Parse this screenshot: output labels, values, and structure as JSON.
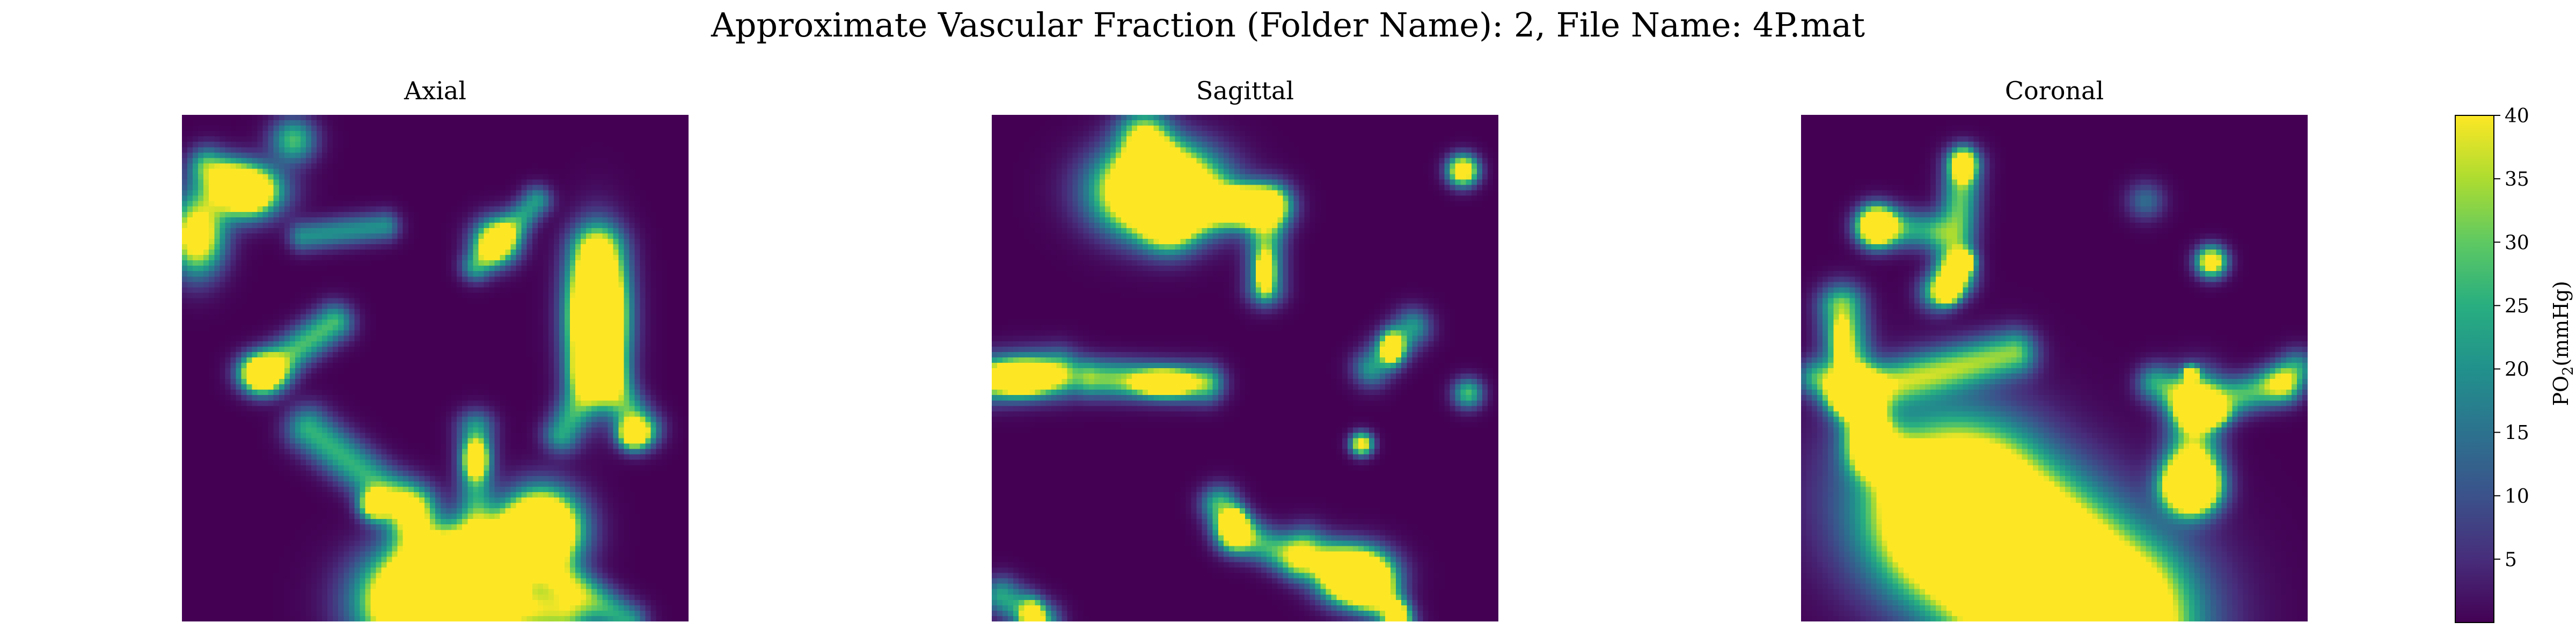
{
  "figure": {
    "title": "Approximate Vascular Fraction (Folder Name): 2, File Name: 4P.mat"
  },
  "chart_data": [
    {
      "type": "heatmap",
      "title": "Axial",
      "value_unit": "mmHg",
      "vmin": 0,
      "vmax": 40,
      "features": [
        {
          "kind": "blob",
          "x": 0.12,
          "y": 0.15,
          "w": 0.1,
          "h": 0.07,
          "v": 1.5
        },
        {
          "kind": "blob",
          "x": 0.03,
          "y": 0.24,
          "w": 0.07,
          "h": 0.1,
          "v": 1.3
        },
        {
          "kind": "blob",
          "x": 0.22,
          "y": 0.05,
          "w": 0.06,
          "h": 0.06,
          "v": 0.7
        },
        {
          "kind": "seg",
          "x1": 0.05,
          "y1": 0.1,
          "x2": 0.14,
          "y2": 0.15,
          "w": 0.05,
          "v": 0.65
        },
        {
          "kind": "blob",
          "x": 0.62,
          "y": 0.25,
          "w": 0.06,
          "h": 0.06,
          "v": 1.2
        },
        {
          "kind": "seg",
          "x1": 0.58,
          "y1": 0.3,
          "x2": 0.7,
          "y2": 0.17,
          "w": 0.04,
          "v": 0.55
        },
        {
          "kind": "seg",
          "x1": 0.24,
          "y1": 0.24,
          "x2": 0.4,
          "y2": 0.22,
          "w": 0.04,
          "v": 0.5
        },
        {
          "kind": "blob",
          "x": 0.82,
          "y": 0.4,
          "w": 0.07,
          "h": 0.18,
          "v": 2.0
        },
        {
          "kind": "seg",
          "x1": 0.82,
          "y1": 0.27,
          "x2": 0.82,
          "y2": 0.5,
          "w": 0.07,
          "v": 0.8
        },
        {
          "kind": "seg",
          "x1": 0.82,
          "y1": 0.5,
          "x2": 0.91,
          "y2": 0.62,
          "w": 0.05,
          "v": 0.65
        },
        {
          "kind": "seg",
          "x1": 0.82,
          "y1": 0.5,
          "x2": 0.75,
          "y2": 0.63,
          "w": 0.05,
          "v": 0.6
        },
        {
          "kind": "blob",
          "x": 0.89,
          "y": 0.63,
          "w": 0.04,
          "h": 0.04,
          "v": 1.3
        },
        {
          "kind": "blob",
          "x": 0.16,
          "y": 0.51,
          "w": 0.06,
          "h": 0.05,
          "v": 1.4
        },
        {
          "kind": "seg",
          "x1": 0.16,
          "y1": 0.51,
          "x2": 0.3,
          "y2": 0.41,
          "w": 0.05,
          "v": 0.7
        },
        {
          "kind": "seg",
          "x1": 0.25,
          "y1": 0.62,
          "x2": 0.45,
          "y2": 0.78,
          "w": 0.06,
          "v": 0.65
        },
        {
          "kind": "seg",
          "x1": 0.45,
          "y1": 0.78,
          "x2": 0.5,
          "y2": 0.93,
          "w": 0.07,
          "v": 0.7
        },
        {
          "kind": "blob",
          "x": 0.38,
          "y": 0.77,
          "w": 0.04,
          "h": 0.04,
          "v": 1.2
        },
        {
          "kind": "blob",
          "x": 0.58,
          "y": 0.68,
          "w": 0.03,
          "h": 0.05,
          "v": 1.2
        },
        {
          "kind": "seg",
          "x1": 0.58,
          "y1": 0.62,
          "x2": 0.58,
          "y2": 0.85,
          "w": 0.05,
          "v": 0.55
        },
        {
          "kind": "blob",
          "x": 0.71,
          "y": 0.82,
          "w": 0.1,
          "h": 0.1,
          "v": 2.1
        },
        {
          "kind": "seg",
          "x1": 0.55,
          "y1": 0.85,
          "x2": 0.7,
          "y2": 0.82,
          "w": 0.07,
          "v": 0.75
        },
        {
          "kind": "blob",
          "x": 0.49,
          "y": 0.96,
          "w": 0.16,
          "h": 0.13,
          "v": 2.8
        },
        {
          "kind": "seg",
          "x1": 0.49,
          "y1": 0.96,
          "x2": 0.75,
          "y2": 0.98,
          "w": 0.08,
          "v": 0.9
        },
        {
          "kind": "seg",
          "x1": 0.58,
          "y1": 0.93,
          "x2": 0.7,
          "y2": 0.86,
          "w": 0.05,
          "v": 0.7
        },
        {
          "kind": "seg",
          "x1": 0.73,
          "y1": 0.9,
          "x2": 0.88,
          "y2": 1.0,
          "w": 0.05,
          "v": 0.6
        },
        {
          "kind": "blob",
          "x": 0.66,
          "y": 0.92,
          "w": 0.03,
          "h": 0.03,
          "v": 1.2
        }
      ]
    },
    {
      "type": "heatmap",
      "title": "Sagittal",
      "value_unit": "mmHg",
      "vmin": 0,
      "vmax": 40,
      "features": [
        {
          "kind": "blob",
          "x": 0.33,
          "y": 0.15,
          "w": 0.15,
          "h": 0.11,
          "v": 2.6
        },
        {
          "kind": "blob",
          "x": 0.31,
          "y": 0.08,
          "w": 0.04,
          "h": 0.05,
          "v": 1.2
        },
        {
          "kind": "seg",
          "x1": 0.3,
          "y1": 0.04,
          "x2": 0.35,
          "y2": 0.22,
          "w": 0.07,
          "v": 0.8
        },
        {
          "kind": "seg",
          "x1": 0.35,
          "y1": 0.18,
          "x2": 0.55,
          "y2": 0.18,
          "w": 0.06,
          "v": 0.85
        },
        {
          "kind": "blob",
          "x": 0.5,
          "y": 0.18,
          "w": 0.07,
          "h": 0.04,
          "v": 1.5
        },
        {
          "kind": "seg",
          "x1": 0.54,
          "y1": 0.18,
          "x2": 0.54,
          "y2": 0.34,
          "w": 0.05,
          "v": 0.7
        },
        {
          "kind": "blob",
          "x": 0.54,
          "y": 0.31,
          "w": 0.02,
          "h": 0.05,
          "v": 1.2
        },
        {
          "kind": "blob",
          "x": 0.93,
          "y": 0.11,
          "w": 0.04,
          "h": 0.04,
          "v": 1.4
        },
        {
          "kind": "seg",
          "x1": 0.0,
          "y1": 0.52,
          "x2": 0.13,
          "y2": 0.51,
          "w": 0.06,
          "v": 0.9
        },
        {
          "kind": "blob",
          "x": 0.06,
          "y": 0.52,
          "w": 0.08,
          "h": 0.04,
          "v": 1.5
        },
        {
          "kind": "seg",
          "x1": 0.2,
          "y1": 0.52,
          "x2": 0.42,
          "y2": 0.53,
          "w": 0.05,
          "v": 0.8
        },
        {
          "kind": "blob",
          "x": 0.34,
          "y": 0.53,
          "w": 0.07,
          "h": 0.03,
          "v": 1.4
        },
        {
          "kind": "blob",
          "x": 0.79,
          "y": 0.46,
          "w": 0.03,
          "h": 0.04,
          "v": 1.2
        },
        {
          "kind": "seg",
          "x1": 0.75,
          "y1": 0.5,
          "x2": 0.83,
          "y2": 0.42,
          "w": 0.05,
          "v": 0.55
        },
        {
          "kind": "blob",
          "x": 0.94,
          "y": 0.55,
          "w": 0.04,
          "h": 0.04,
          "v": 0.7
        },
        {
          "kind": "blob",
          "x": 0.73,
          "y": 0.65,
          "w": 0.03,
          "h": 0.03,
          "v": 1.2
        },
        {
          "kind": "seg",
          "x1": 0.45,
          "y1": 0.77,
          "x2": 0.48,
          "y2": 0.83,
          "w": 0.05,
          "v": 0.7
        },
        {
          "kind": "blob",
          "x": 0.48,
          "y": 0.81,
          "w": 0.03,
          "h": 0.04,
          "v": 1.2
        },
        {
          "kind": "seg",
          "x1": 0.48,
          "y1": 0.82,
          "x2": 0.6,
          "y2": 0.88,
          "w": 0.05,
          "v": 0.65
        },
        {
          "kind": "blob",
          "x": 0.72,
          "y": 0.91,
          "w": 0.09,
          "h": 0.07,
          "v": 2.0
        },
        {
          "kind": "seg",
          "x1": 0.62,
          "y1": 0.86,
          "x2": 0.74,
          "y2": 0.93,
          "w": 0.06,
          "v": 0.75
        },
        {
          "kind": "seg",
          "x1": 0.75,
          "y1": 0.93,
          "x2": 0.8,
          "y2": 1.0,
          "w": 0.05,
          "v": 0.6
        },
        {
          "kind": "blob",
          "x": 0.8,
          "y": 0.99,
          "w": 0.03,
          "h": 0.04,
          "v": 1.2
        },
        {
          "kind": "blob",
          "x": 0.08,
          "y": 0.99,
          "w": 0.03,
          "h": 0.04,
          "v": 1.2
        },
        {
          "kind": "seg",
          "x1": 0.02,
          "y1": 0.95,
          "x2": 0.1,
          "y2": 1.0,
          "w": 0.05,
          "v": 0.6
        }
      ]
    },
    {
      "type": "heatmap",
      "title": "Coronal",
      "value_unit": "mmHg",
      "vmin": 0,
      "vmax": 40,
      "features": [
        {
          "kind": "blob",
          "x": 0.32,
          "y": 0.1,
          "w": 0.03,
          "h": 0.04,
          "v": 1.2
        },
        {
          "kind": "seg",
          "x1": 0.32,
          "y1": 0.1,
          "x2": 0.3,
          "y2": 0.32,
          "w": 0.05,
          "v": 0.75
        },
        {
          "kind": "seg",
          "x1": 0.3,
          "y1": 0.32,
          "x2": 0.27,
          "y2": 0.35,
          "w": 0.05,
          "v": 0.7
        },
        {
          "kind": "blob",
          "x": 0.15,
          "y": 0.22,
          "w": 0.05,
          "h": 0.05,
          "v": 1.6
        },
        {
          "kind": "seg",
          "x1": 0.15,
          "y1": 0.22,
          "x2": 0.26,
          "y2": 0.23,
          "w": 0.05,
          "v": 0.6
        },
        {
          "kind": "blob",
          "x": 0.32,
          "y": 0.29,
          "w": 0.03,
          "h": 0.03,
          "v": 1.2
        },
        {
          "kind": "blob",
          "x": 0.29,
          "y": 0.35,
          "w": 0.03,
          "h": 0.03,
          "v": 1.2
        },
        {
          "kind": "blob",
          "x": 0.81,
          "y": 0.29,
          "w": 0.04,
          "h": 0.04,
          "v": 1.3
        },
        {
          "kind": "blob",
          "x": 0.68,
          "y": 0.17,
          "w": 0.05,
          "h": 0.05,
          "v": 0.35
        },
        {
          "kind": "seg",
          "x1": 0.08,
          "y1": 0.38,
          "x2": 0.1,
          "y2": 0.55,
          "w": 0.06,
          "v": 0.85
        },
        {
          "kind": "blob",
          "x": 0.08,
          "y": 0.45,
          "w": 0.02,
          "h": 0.05,
          "v": 1.2
        },
        {
          "kind": "seg",
          "x1": 0.1,
          "y1": 0.55,
          "x2": 0.42,
          "y2": 0.47,
          "w": 0.06,
          "v": 0.8
        },
        {
          "kind": "seg",
          "x1": 0.12,
          "y1": 0.55,
          "x2": 0.14,
          "y2": 0.67,
          "w": 0.06,
          "v": 0.8
        },
        {
          "kind": "blob",
          "x": 0.14,
          "y": 0.63,
          "w": 0.03,
          "h": 0.07,
          "v": 1.5
        },
        {
          "kind": "seg",
          "x1": 0.03,
          "y1": 0.52,
          "x2": 0.1,
          "y2": 0.55,
          "w": 0.05,
          "v": 0.6
        },
        {
          "kind": "seg",
          "x1": 0.14,
          "y1": 0.65,
          "x2": 0.3,
          "y2": 0.78,
          "w": 0.07,
          "v": 0.7
        },
        {
          "kind": "blob",
          "x": 0.38,
          "y": 0.85,
          "w": 0.12,
          "h": 0.08,
          "v": 2.6
        },
        {
          "kind": "blob",
          "x": 0.47,
          "y": 0.93,
          "w": 0.1,
          "h": 0.08,
          "v": 2.6
        },
        {
          "kind": "seg",
          "x1": 0.33,
          "y1": 0.8,
          "x2": 0.57,
          "y2": 1.0,
          "w": 0.2,
          "v": 2.6
        },
        {
          "kind": "seg",
          "x1": 0.25,
          "y1": 0.75,
          "x2": 0.62,
          "y2": 1.0,
          "w": 0.26,
          "v": 0.55
        },
        {
          "kind": "blob",
          "x": 0.46,
          "y": 0.82,
          "w": 0.03,
          "h": 0.03,
          "v": 1.2
        },
        {
          "kind": "blob",
          "x": 0.77,
          "y": 0.73,
          "w": 0.07,
          "h": 0.07,
          "v": 2.1
        },
        {
          "kind": "seg",
          "x1": 0.77,
          "y1": 0.73,
          "x2": 0.78,
          "y2": 0.55,
          "w": 0.07,
          "v": 0.8
        },
        {
          "kind": "seg",
          "x1": 0.78,
          "y1": 0.58,
          "x2": 0.95,
          "y2": 0.53,
          "w": 0.05,
          "v": 0.7
        },
        {
          "kind": "seg",
          "x1": 0.78,
          "y1": 0.58,
          "x2": 0.7,
          "y2": 0.53,
          "w": 0.05,
          "v": 0.6
        },
        {
          "kind": "blob",
          "x": 0.8,
          "y": 0.59,
          "w": 0.05,
          "h": 0.03,
          "v": 1.4
        },
        {
          "kind": "blob",
          "x": 0.77,
          "y": 0.51,
          "w": 0.02,
          "h": 0.02,
          "v": 1.1
        },
        {
          "kind": "seg",
          "x1": 0.95,
          "y1": 0.53,
          "x2": 0.98,
          "y2": 0.5,
          "w": 0.05,
          "v": 0.5
        }
      ]
    }
  ],
  "colorbar": {
    "label_main": "PO",
    "label_sub": "2",
    "label_unit": "(mmHg)",
    "ticks": [
      "5",
      "10",
      "15",
      "20",
      "25",
      "30",
      "35",
      "40"
    ],
    "tick_values": [
      5,
      10,
      15,
      20,
      25,
      30,
      35,
      40
    ],
    "vmin": 0,
    "vmax": 40
  },
  "colors": {
    "colormap": "viridis",
    "background": "#ffffff",
    "text": "#000000"
  }
}
